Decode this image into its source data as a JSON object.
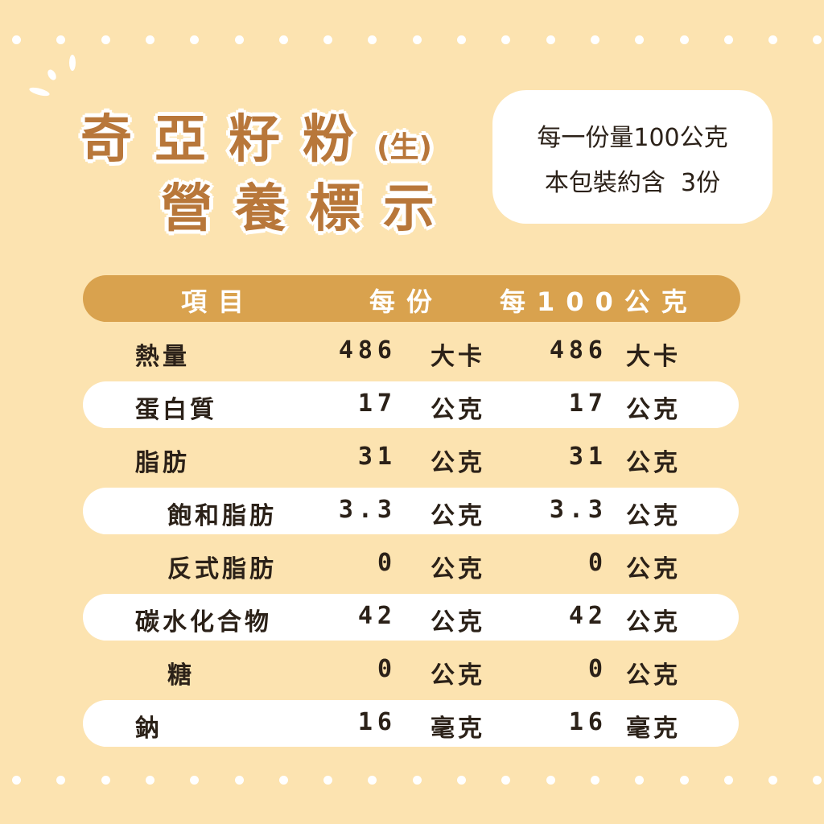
{
  "title": {
    "line1": "奇亞籽粉",
    "suffix": "(生)",
    "line2": "營養標示"
  },
  "serving": {
    "per_serving": "每一份量100公克",
    "servings": "本包裝約含  3份"
  },
  "table": {
    "headers": [
      "項目",
      "每份",
      "每100公克"
    ],
    "rows": [
      {
        "name": "熱量",
        "indent": false,
        "per_serving": "486",
        "unit1": "大卡",
        "per_100g": "486",
        "unit2": "大卡"
      },
      {
        "name": "蛋白質",
        "indent": false,
        "per_serving": "17",
        "unit1": "公克",
        "per_100g": "17",
        "unit2": "公克"
      },
      {
        "name": "脂肪",
        "indent": false,
        "per_serving": "31",
        "unit1": "公克",
        "per_100g": "31",
        "unit2": "公克"
      },
      {
        "name": "飽和脂肪",
        "indent": true,
        "per_serving": "3.3",
        "unit1": "公克",
        "per_100g": "3.3",
        "unit2": "公克"
      },
      {
        "name": "反式脂肪",
        "indent": true,
        "per_serving": "0",
        "unit1": "公克",
        "per_100g": "0",
        "unit2": "公克"
      },
      {
        "name": "碳水化合物",
        "indent": false,
        "per_serving": "42",
        "unit1": "公克",
        "per_100g": "42",
        "unit2": "公克"
      },
      {
        "name": "糖",
        "indent": true,
        "per_serving": "0",
        "unit1": "公克",
        "per_100g": "0",
        "unit2": "公克"
      },
      {
        "name": "鈉",
        "indent": false,
        "per_serving": "16",
        "unit1": "毫克",
        "per_100g": "16",
        "unit2": "毫克"
      }
    ]
  },
  "colors": {
    "background": "#fce3b0",
    "title": "#b8773a",
    "header": "#d9a24e"
  }
}
